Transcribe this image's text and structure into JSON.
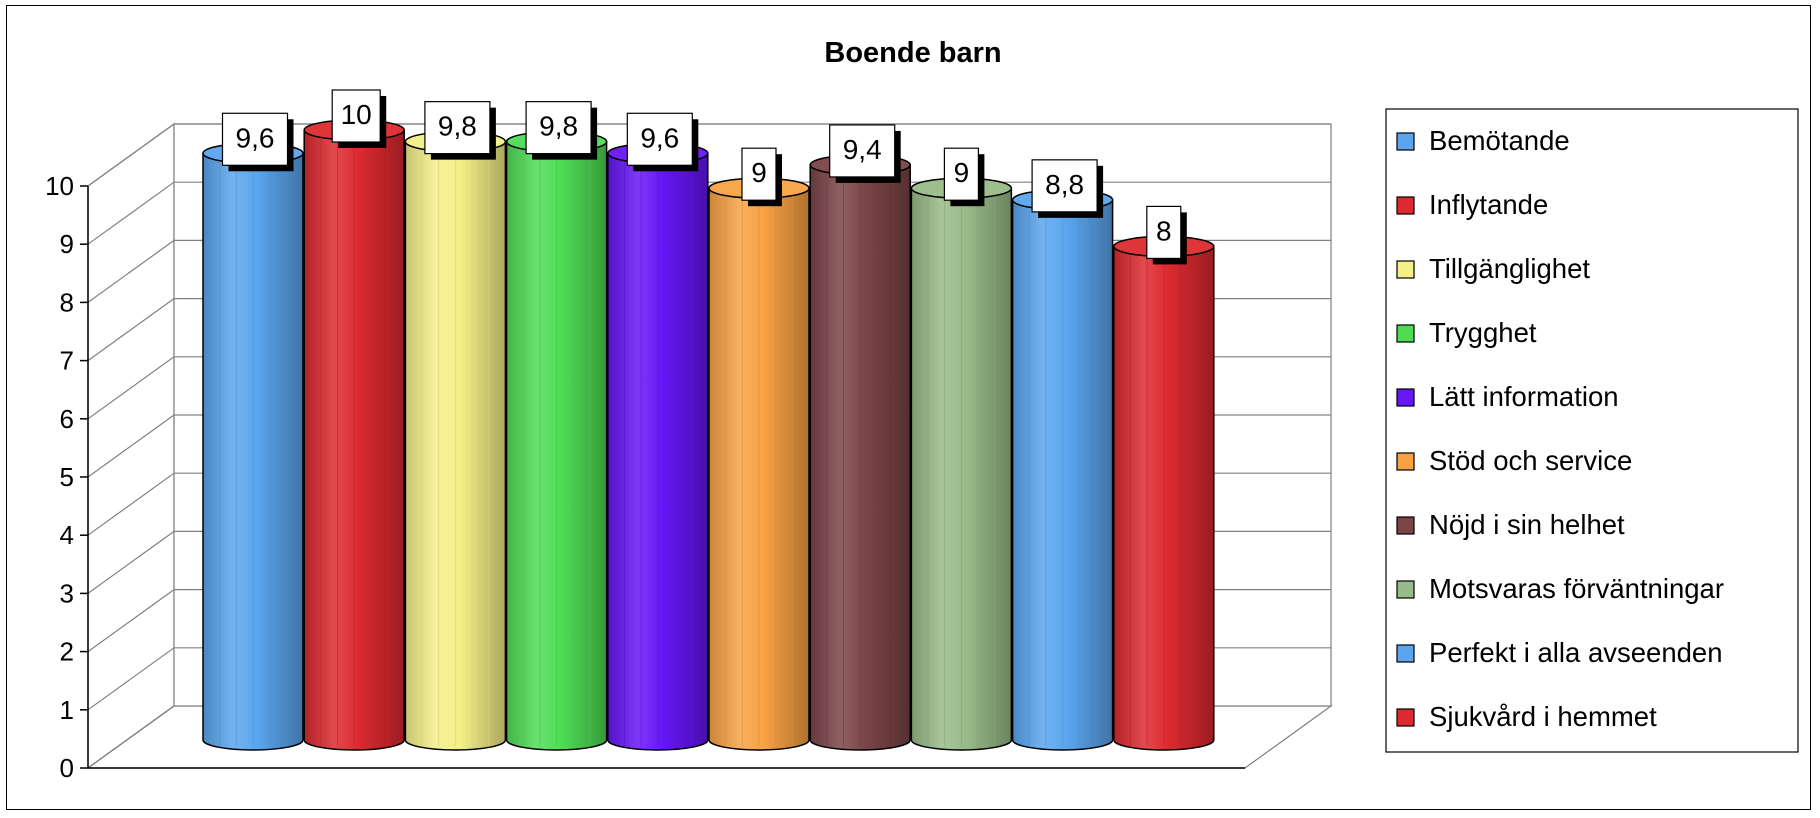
{
  "chart_data": {
    "type": "bar",
    "title": "Boende barn",
    "xlabel": "",
    "ylabel": "",
    "ylim": [
      0,
      10
    ],
    "yticks": [
      "0",
      "1",
      "2",
      "3",
      "4",
      "5",
      "6",
      "7",
      "8",
      "9",
      "10"
    ],
    "grid": true,
    "legend_position": "right",
    "bar_shape": "3d-cylinder",
    "series": [
      {
        "name": "Bemötande",
        "value": 9.6,
        "label": "9,6",
        "color": "#5aa5ee"
      },
      {
        "name": "Inflytande",
        "value": 10,
        "label": "10",
        "color": "#dc2a2f"
      },
      {
        "name": "Tillgänglighet",
        "value": 9.8,
        "label": "9,8",
        "color": "#f4ef88"
      },
      {
        "name": "Trygghet",
        "value": 9.8,
        "label": "9,8",
        "color": "#4fdc55"
      },
      {
        "name": "Lätt information",
        "value": 9.6,
        "label": "9,6",
        "color": "#6716f5"
      },
      {
        "name": "Stöd och service",
        "value": 9,
        "label": "9",
        "color": "#f8a244"
      },
      {
        "name": "Nöjd i sin helhet",
        "value": 9.4,
        "label": "9,4",
        "color": "#7b4448"
      },
      {
        "name": "Motsvaras förväntningar",
        "value": 9,
        "label": "9",
        "color": "#99bb88"
      },
      {
        "name": "Perfekt i alla avseenden",
        "value": 8.8,
        "label": "8,8",
        "color": "#5aa5ee"
      },
      {
        "name": "Sjukvård i hemmet",
        "value": 8,
        "label": "8",
        "color": "#dc2a2f"
      }
    ]
  }
}
